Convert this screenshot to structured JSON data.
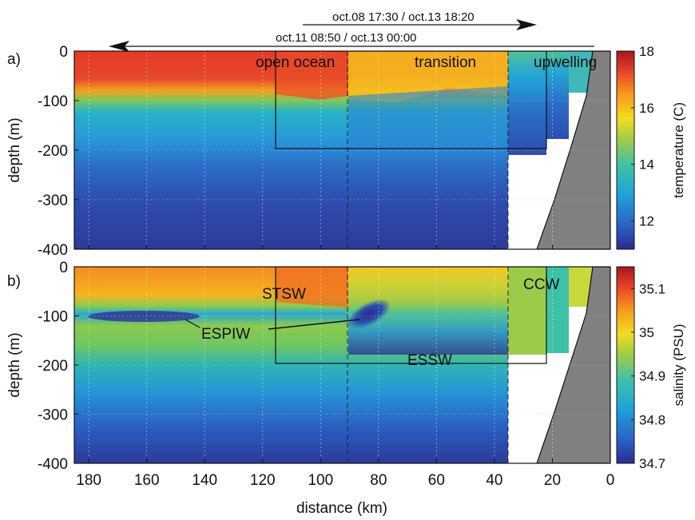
{
  "header": {
    "arrow_right_label": "oct.08 17:30 / oct.13 18:20",
    "arrow_left_label": "oct.11 08:50 / oct.13 00:00"
  },
  "chart_data": [
    {
      "type": "heatmap",
      "panel_label": "a)",
      "variable": "temperature",
      "xlabel": "distance (km)",
      "ylabel": "depth (m)",
      "colorbar_label": "temperature (C)",
      "colorbar_ticks": [
        12,
        14,
        16,
        18
      ],
      "colorbar_range": [
        11,
        18
      ],
      "xlim": [
        185,
        0
      ],
      "ylim": [
        -400,
        0
      ],
      "x_ticks": [
        180,
        160,
        140,
        120,
        100,
        80,
        60,
        40,
        20,
        0
      ],
      "y_ticks": [
        0,
        -100,
        -200,
        -300,
        -400
      ],
      "y_tick_labels": [
        "0",
        "-100",
        "-200",
        "-300",
        "-400"
      ],
      "regions": [
        "open ocean",
        "transition",
        "upwelling"
      ],
      "box": {
        "x": [
          116,
          22
        ],
        "y": [
          0,
          -200
        ]
      },
      "section_lines_km": [
        91,
        35
      ]
    },
    {
      "type": "heatmap",
      "panel_label": "b)",
      "variable": "salinity",
      "xlabel": "distance (km)",
      "ylabel": "depth (m)",
      "colorbar_label": "salinity (PSU)",
      "colorbar_ticks": [
        34.7,
        34.8,
        34.9,
        35,
        35.1
      ],
      "colorbar_tick_labels": [
        "34.7",
        "34.8",
        "34.9",
        "35",
        "35.1"
      ],
      "colorbar_range": [
        34.7,
        35.15
      ],
      "xlim": [
        185,
        0
      ],
      "ylim": [
        -400,
        0
      ],
      "x_ticks": [
        180,
        160,
        140,
        120,
        100,
        80,
        60,
        40,
        20,
        0
      ],
      "y_ticks": [
        0,
        -100,
        -200,
        -300,
        -400
      ],
      "y_tick_labels": [
        "0",
        "-100",
        "-200",
        "-300",
        "-400"
      ],
      "water_masses": [
        "STSW",
        "ESPIW",
        "ESSW",
        "CCW"
      ],
      "box": {
        "x": [
          116,
          22
        ],
        "y": [
          0,
          -200
        ]
      },
      "section_lines_km": [
        91,
        35
      ]
    }
  ],
  "colors": {
    "seafloor": "#808080",
    "colormap": [
      "#2d2a8f",
      "#2a63c6",
      "#1fa3d8",
      "#3ec1a9",
      "#9ccb4a",
      "#f3dd1f",
      "#f79a1c",
      "#e8402a",
      "#a8171c"
    ]
  }
}
